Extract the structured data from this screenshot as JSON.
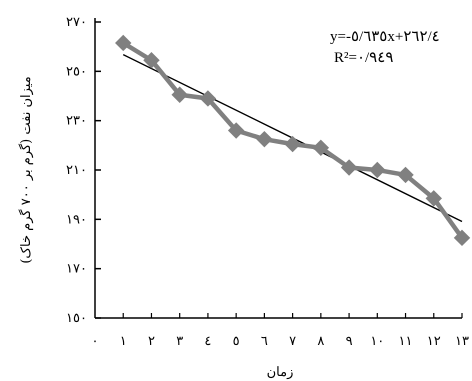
{
  "chart_data": {
    "type": "scatter",
    "title": "",
    "xlabel": "زمان",
    "ylabel": "میزان نفت (گرم بر ۷۰۰ گرم خاک)",
    "x_ticks": [
      "۰",
      "۱",
      "۲",
      "۳",
      "٤",
      "٥",
      "٦",
      "۷",
      "۸",
      "۹",
      "۱۰",
      "۱۱",
      "۱۲",
      "۱۳"
    ],
    "y_ticks": [
      {
        "value": 150,
        "label": "۱٥۰"
      },
      {
        "value": 170,
        "label": "۱۷۰"
      },
      {
        "value": 190,
        "label": "۱۹۰"
      },
      {
        "value": 210,
        "label": "۲۱۰"
      },
      {
        "value": 230,
        "label": "۲۳۰"
      },
      {
        "value": 250,
        "label": "۲٥۰"
      },
      {
        "value": 270,
        "label": "۲۷۰"
      }
    ],
    "xlim": [
      0,
      13
    ],
    "ylim": [
      150,
      270
    ],
    "grid": false,
    "series": [
      {
        "x": [
          1,
          2,
          3,
          4,
          5,
          6,
          7,
          8,
          9,
          10,
          11,
          12,
          13
        ],
        "y": [
          261.5,
          254.5,
          240.5,
          239.0,
          226.0,
          222.5,
          220.5,
          219.0,
          211.0,
          210.0,
          208.0,
          198.5,
          182.5
        ],
        "color": "#808080"
      }
    ],
    "trendline": {
      "slope": -5.635,
      "intercept": 262.4,
      "color": "#000000",
      "equation_label": "y=-٥/٦٣٥x+٢٦٢/٤",
      "r2_label": "R²=۰/۹٤۹"
    }
  }
}
